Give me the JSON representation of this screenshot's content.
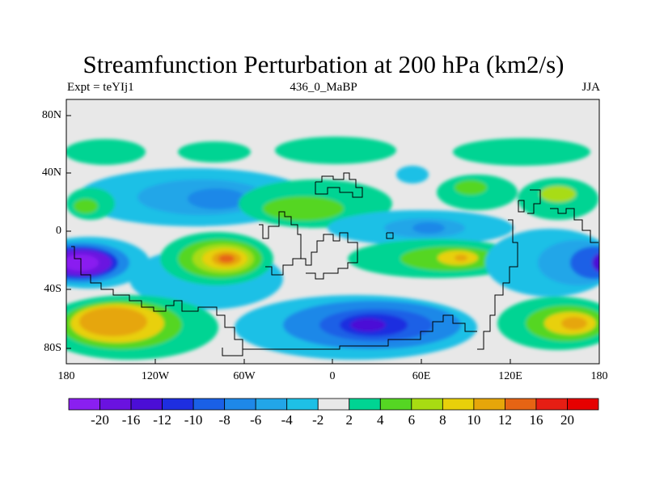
{
  "title": "Streamfunction Perturbation at 200 hPa (km2/s)",
  "subtitle_left": "Expt = teYIj1",
  "subtitle_center": "436_0_MaBP",
  "subtitle_right": "JJA",
  "map": {
    "lon_range": [
      -180,
      180
    ],
    "lat_range": [
      -90,
      90
    ],
    "lat_labels": [
      "80N",
      "40N",
      "0",
      "40S",
      "80S"
    ],
    "lon_labels": [
      "180",
      "120W",
      "60W",
      "0",
      "60E",
      "120E",
      "180"
    ],
    "background_color": "#e8e8e8"
  },
  "colorbar": {
    "labels": [
      "-20",
      "-16",
      "-12",
      "-10",
      "-8",
      "-6",
      "-4",
      "-2",
      "2",
      "4",
      "6",
      "8",
      "10",
      "12",
      "16",
      "20"
    ],
    "colors": [
      "#8a1ff0",
      "#6a12e0",
      "#4b0ed6",
      "#1e2ee0",
      "#1a60e6",
      "#1e88e8",
      "#22a6e8",
      "#1ec0e6",
      "#e8e8e8",
      "#00d493",
      "#55d623",
      "#a8dc12",
      "#e8d00a",
      "#e6a60a",
      "#e66414",
      "#e61e14",
      "#e60000"
    ]
  }
}
